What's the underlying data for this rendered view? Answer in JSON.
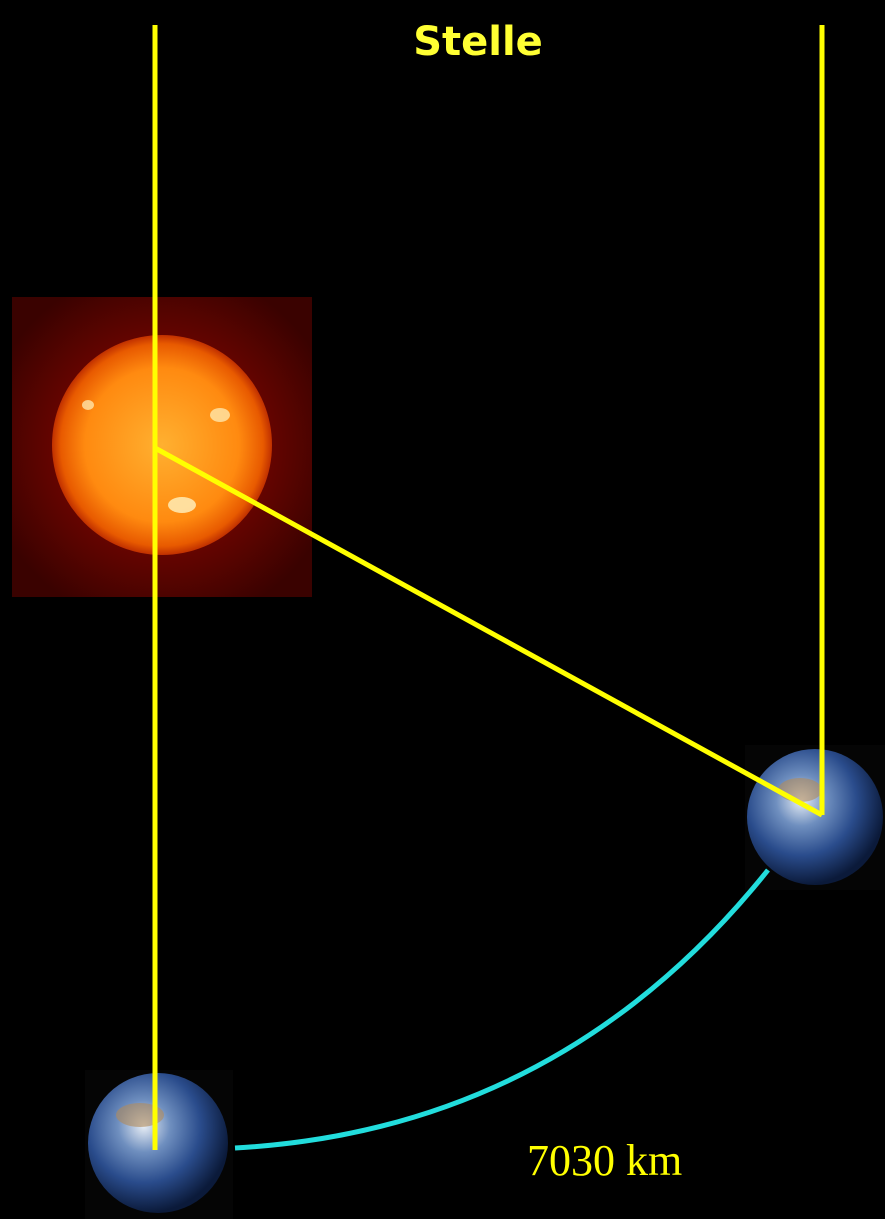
{
  "title": "Stelle",
  "distance_label": "7030 km"
}
